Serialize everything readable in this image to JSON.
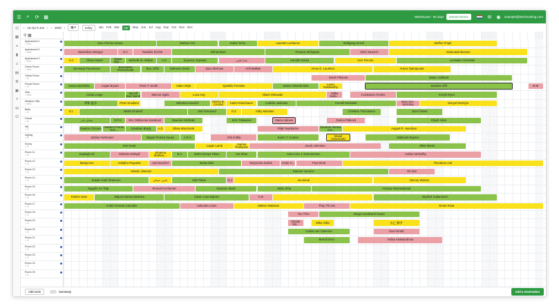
{
  "topbar": {
    "warehouse": "Warehouse : 94 days",
    "renew": "Extend service",
    "email": "example@bed-booking.com"
  },
  "toolbar": {
    "range": "16 Apr 6 Jun",
    "year": "2020",
    "today": "today",
    "months": [
      "Jan",
      "Feb",
      "Mar",
      "Apr",
      "May",
      "Jun",
      "Jul",
      "Aug",
      "Sep",
      "Oct",
      "Nov",
      "Dec"
    ],
    "active_month": "Apr"
  },
  "rooms": [
    {
      "name": "Apartament 1",
      "meta": "♂ 4+1"
    },
    {
      "name": "Apartament 2",
      "meta": "♂ 4+1"
    },
    {
      "name": "Apartament 3",
      "meta": "♂ 4+1"
    },
    {
      "name": "Green Room",
      "meta": "♂ 4+1"
    },
    {
      "name": "Yellow Room",
      "meta": "♂ 2"
    },
    {
      "name": "Purple Room",
      "meta": "♂ 2"
    },
    {
      "name": "Villa",
      "meta": "♂ 6+1"
    },
    {
      "name": "Madison Villa",
      "meta": "♂ 6+1"
    },
    {
      "name": "Bella",
      "meta": "♂ 4"
    },
    {
      "name": "Forest",
      "meta": "♂ 4"
    },
    {
      "name": "Hill",
      "meta": "♂ 2"
    },
    {
      "name": "ZigZag",
      "meta": "♂ 2"
    },
    {
      "name": "Sunny",
      "meta": "♂ 2"
    },
    {
      "name": "Room 11",
      "meta": "♂ 2"
    },
    {
      "name": "Room 12",
      "meta": "♂ 2"
    },
    {
      "name": "Room 13",
      "meta": "♂ 2"
    },
    {
      "name": "Room 14",
      "meta": "♂ 2"
    },
    {
      "name": "Room 15",
      "meta": "♂ 2"
    },
    {
      "name": "Room 16",
      "meta": "♂ 2"
    },
    {
      "name": "Room 17",
      "meta": "♂ 2"
    },
    {
      "name": "Room 18",
      "meta": "♂ 2"
    },
    {
      "name": "Room 19",
      "meta": "♂ 2"
    },
    {
      "name": "Room 20",
      "meta": "♂ 2"
    },
    {
      "name": "Room 21",
      "meta": "♂ 2"
    },
    {
      "name": "Room 22",
      "meta": "♂ 2"
    },
    {
      "name": "Room 23",
      "meta": "♂ 2"
    },
    {
      "name": "Room 24",
      "meta": "♂ 2"
    },
    {
      "name": "Room 25",
      "meta": "♂ 2"
    }
  ],
  "bookings": [
    {
      "r": 0,
      "s": 0,
      "e": 12,
      "t": "Alice Pereira Sousa",
      "c": "g"
    },
    {
      "r": 0,
      "s": 12,
      "e": 20,
      "t": "Stefano Oro",
      "c": "g"
    },
    {
      "r": 0,
      "s": 20,
      "e": 25,
      "t": "Kalevi Tervo",
      "c": "g"
    },
    {
      "r": 0,
      "s": 25,
      "e": 33,
      "t": "Laurette Lachance",
      "c": "y"
    },
    {
      "r": 0,
      "s": 33,
      "e": 42,
      "t": "Wolfgang Kirsch",
      "c": "g"
    },
    {
      "r": 0,
      "s": 42,
      "e": 56,
      "t": "Steffen Projet",
      "c": "y"
    },
    {
      "r": 1,
      "s": 0,
      "e": 7,
      "t": "Maximilian Metzger",
      "c": "p"
    },
    {
      "r": 1,
      "s": 7,
      "e": 9,
      "t": "D.A",
      "c": "p"
    },
    {
      "r": 1,
      "s": 9,
      "e": 14,
      "t": "Radmila Švrček",
      "c": "p"
    },
    {
      "r": 1,
      "s": 14,
      "e": 26,
      "t": "Bill McKlain",
      "c": "g"
    },
    {
      "r": 1,
      "s": 26,
      "e": 37,
      "t": "Полина Лебедева",
      "c": "g"
    },
    {
      "r": 1,
      "s": 37,
      "e": 42,
      "t": "Ulrich Muench",
      "c": "p"
    },
    {
      "r": 1,
      "s": 42,
      "e": 60,
      "t": "Selamawit Bezane",
      "c": "y"
    },
    {
      "r": 2,
      "s": 0,
      "e": 2,
      "t": "X.C",
      "c": "y"
    },
    {
      "r": 2,
      "s": 2,
      "e": 6,
      "t": "Chow Hsueh",
      "c": "g"
    },
    {
      "r": 2,
      "s": 6,
      "e": 8,
      "t": "Vogue Mija...",
      "c": "g"
    },
    {
      "r": 2,
      "s": 8,
      "e": 12,
      "t": "Michelle M. Wilson",
      "c": "g"
    },
    {
      "r": 2,
      "s": 12,
      "e": 14,
      "t": "A.H",
      "c": "g"
    },
    {
      "r": 2,
      "s": 14,
      "e": 20,
      "t": "ζηνωνας σάρακας",
      "c": "g"
    },
    {
      "r": 2,
      "s": 20,
      "e": 26,
      "t": "سارا همی",
      "c": "p"
    },
    {
      "r": 2,
      "s": 26,
      "e": 35,
      "t": "Horváth Dorka",
      "c": "g"
    },
    {
      "r": 2,
      "s": 35,
      "e": 43,
      "t": "Cevi Finnzer",
      "c": "y"
    },
    {
      "r": 2,
      "s": 43,
      "e": 60,
      "t": "Leokadia Ciemiński",
      "c": "g"
    },
    {
      "r": 3,
      "s": 0,
      "e": 6,
      "t": "Gennady Ponomarev",
      "c": "g"
    },
    {
      "r": 3,
      "s": 6,
      "e": 10,
      "t": "Benedykta Pietruszczak",
      "c": "g"
    },
    {
      "r": 3,
      "s": 10,
      "e": 13,
      "t": "Tara Vržlić",
      "c": "g"
    },
    {
      "r": 3,
      "s": 13,
      "e": 17,
      "t": "Dalmace Denis",
      "c": "g"
    },
    {
      "r": 3,
      "s": 17,
      "e": 22,
      "t": "Zara Shishani",
      "c": "p"
    },
    {
      "r": 3,
      "s": 22,
      "e": 27,
      "t": "Anil Walkari",
      "c": "p"
    },
    {
      "r": 3,
      "s": 27,
      "e": 40,
      "t": "Amos O. Laurtsen",
      "c": "y"
    },
    {
      "r": 3,
      "s": 40,
      "e": 50,
      "t": "Анеса Григорьева",
      "c": "y"
    },
    {
      "r": 4,
      "s": 32,
      "e": 39,
      "t": "Sarah Pikmara",
      "c": "p"
    },
    {
      "r": 4,
      "s": 39,
      "e": 58,
      "t": "Mateo Vaillaroli",
      "c": "g"
    },
    {
      "r": 5,
      "s": 0,
      "e": 4,
      "t": "Kasia Kamińska",
      "c": "g"
    },
    {
      "r": 5,
      "s": 4,
      "e": 8,
      "t": "Logan Bryant",
      "c": "p"
    },
    {
      "r": 5,
      "s": 8,
      "e": 14,
      "t": "Rose T. Smith",
      "c": "p"
    },
    {
      "r": 5,
      "s": 14,
      "e": 17,
      "t": "Adam Wryk",
      "c": "y"
    },
    {
      "r": 5,
      "s": 17,
      "e": 27,
      "t": "Quintilia Trevisan",
      "c": "y"
    },
    {
      "r": 5,
      "s": 27,
      "e": 33,
      "t": "Sulian Almeida Dias",
      "c": "g"
    },
    {
      "r": 5,
      "s": 33,
      "e": 36,
      "t": "Laura Goldworthy",
      "c": "y"
    },
    {
      "r": 5,
      "s": 39,
      "e": 58,
      "t": "Jaroslav Kříž",
      "c": "g",
      "o": true
    },
    {
      "r": 5,
      "s": 60,
      "e": 62,
      "t": "M.M",
      "c": "p"
    },
    {
      "r": 6,
      "s": 0,
      "e": 8,
      "t": "Cinda Longe",
      "c": "g"
    },
    {
      "r": 6,
      "s": 8,
      "e": 10,
      "t": "Munolf Said Sarraf",
      "c": "g"
    },
    {
      "r": 6,
      "s": 10,
      "e": 15,
      "t": "Marcus Ingila",
      "c": "p"
    },
    {
      "r": 6,
      "s": 15,
      "e": 20,
      "t": "Luca Hay",
      "c": "y"
    },
    {
      "r": 6,
      "s": 20,
      "e": 34,
      "t": "Olasri Shinwabi",
      "c": "y"
    },
    {
      "r": 6,
      "s": 34,
      "e": 36,
      "t": "Halka Kalm...",
      "c": "p"
    },
    {
      "r": 6,
      "s": 37,
      "e": 43,
      "t": "Constanza Trentini",
      "c": "p"
    },
    {
      "r": 6,
      "s": 43,
      "e": 56,
      "t": "Krzyšt Ryed",
      "c": "g"
    },
    {
      "r": 7,
      "s": 0,
      "e": 7,
      "t": "乔和 盈子",
      "c": "g"
    },
    {
      "r": 7,
      "s": 7,
      "e": 10,
      "t": "Peter Knudsen",
      "c": "y"
    },
    {
      "r": 7,
      "s": 13,
      "e": 19,
      "t": "Valentina Kovačić",
      "c": "g"
    },
    {
      "r": 7,
      "s": 19,
      "e": 21,
      "t": "Shirley B. Conrad",
      "c": "y"
    },
    {
      "r": 7,
      "s": 21,
      "e": 25,
      "t": "Katrin Eisenhauer",
      "c": "y"
    },
    {
      "r": 7,
      "s": 25,
      "e": 30,
      "t": "Ludmila Jasinska",
      "c": "g"
    },
    {
      "r": 7,
      "s": 30,
      "e": 43,
      "t": "Kornell Michalski",
      "c": "g"
    },
    {
      "r": 7,
      "s": 43,
      "e": 46,
      "t": "Mary Dec. Sirochsa",
      "c": "p"
    },
    {
      "r": 7,
      "s": 46,
      "e": 56,
      "t": "Danyel McIntyre",
      "c": "y"
    },
    {
      "r": 8,
      "s": 0,
      "e": 2,
      "t": "E.L",
      "c": "y"
    },
    {
      "r": 8,
      "s": 2,
      "e": 16,
      "t": "Maksi Drobetić",
      "c": "g"
    },
    {
      "r": 8,
      "s": 16,
      "e": 21,
      "t": "Joel Horvaoud",
      "c": "g"
    },
    {
      "r": 8,
      "s": 21,
      "e": 23,
      "t": "O.Z",
      "c": "y"
    },
    {
      "r": 8,
      "s": 23,
      "e": 29,
      "t": "Abby Minahan",
      "c": "y"
    },
    {
      "r": 8,
      "s": 36,
      "e": 41,
      "t": "Christian Thomassen",
      "c": "g"
    },
    {
      "r": 8,
      "s": 43,
      "e": 49,
      "t": "Józef Šimek",
      "c": "g"
    },
    {
      "r": 9,
      "s": 0,
      "e": 6,
      "t": "عثمان نادر",
      "c": "g"
    },
    {
      "r": 9,
      "s": 6,
      "e": 8,
      "t": "D.P.H",
      "c": "g"
    },
    {
      "r": 9,
      "s": 8,
      "e": 13,
      "t": "Eric Ostlivensa Sandoval",
      "c": "p"
    },
    {
      "r": 9,
      "s": 13,
      "e": 18,
      "t": "Maureen Moltvike",
      "c": "g"
    },
    {
      "r": 9,
      "s": 21,
      "e": 25,
      "t": "John Tobiassen",
      "c": "g"
    },
    {
      "r": 9,
      "s": 27,
      "e": 30,
      "t": "Maria Udinesi",
      "c": "p",
      "o": true
    },
    {
      "r": 9,
      "s": 34,
      "e": 39,
      "t": "Darina Ptáková",
      "c": "p"
    },
    {
      "r": 9,
      "s": 43,
      "e": 54,
      "t": "Eliyah Vann",
      "c": "g"
    },
    {
      "r": 10,
      "s": 2,
      "e": 5,
      "t": "Gawlon Chicane",
      "c": "g"
    },
    {
      "r": 10,
      "s": 5,
      "e": 8,
      "t": "Hakeem Ferrari Nos...",
      "c": "g"
    },
    {
      "r": 10,
      "s": 8,
      "e": 12,
      "t": "Jonathan Brady",
      "c": "g"
    },
    {
      "r": 10,
      "s": 12,
      "e": 13,
      "t": "A.O",
      "c": "y"
    },
    {
      "r": 10,
      "s": 13,
      "e": 18,
      "t": "Olivia Wieczorek",
      "c": "y"
    },
    {
      "r": 10,
      "s": 25,
      "e": 33,
      "t": "Filiph Nordström",
      "c": "p"
    },
    {
      "r": 10,
      "s": 33,
      "e": 36,
      "t": "Eduardo Santos Ara...",
      "c": "g"
    },
    {
      "r": 10,
      "s": 36,
      "e": 52,
      "t": "August R. Hendison",
      "c": "y"
    },
    {
      "r": 11,
      "s": 0,
      "e": 10,
      "t": "Sabine Fuhrmann",
      "c": "p"
    },
    {
      "r": 11,
      "s": 10,
      "e": 15,
      "t": "Miguel Pereira Sousa",
      "c": "g"
    },
    {
      "r": 11,
      "s": 15,
      "e": 17,
      "t": "A.R.H",
      "c": "g"
    },
    {
      "r": 11,
      "s": 19,
      "e": 25,
      "t": "Ahti Anttila",
      "c": "p"
    },
    {
      "r": 11,
      "s": 25,
      "e": 33,
      "t": "Karen T. Cordon",
      "c": "g"
    },
    {
      "r": 11,
      "s": 34,
      "e": 37,
      "t": "Manal Abramowitz",
      "c": "y",
      "o": true
    },
    {
      "r": 11,
      "s": 39,
      "e": 50,
      "t": "Makhardi Ryazev",
      "c": "g"
    },
    {
      "r": 12,
      "s": 0,
      "e": 17,
      "t": "Eve Hurst",
      "c": "g"
    },
    {
      "r": 12,
      "s": 17,
      "e": 22,
      "t": "Logan Lamb",
      "c": "y"
    },
    {
      "r": 12,
      "s": 22,
      "e": 24,
      "t": "Sophia Thompson",
      "c": "y"
    },
    {
      "r": 12,
      "s": 24,
      "e": 41,
      "t": "Jacob Johnston",
      "c": "p"
    },
    {
      "r": 12,
      "s": 42,
      "e": 52,
      "t": "Elliot Morris",
      "c": "g"
    },
    {
      "r": 13,
      "s": 0,
      "e": 6,
      "t": "Kayleigh Ali",
      "c": "g"
    },
    {
      "r": 13,
      "s": 6,
      "e": 11,
      "t": "Stoberia Delegili",
      "c": "p"
    },
    {
      "r": 13,
      "s": 11,
      "e": 14,
      "t": "Johanna Mathias...",
      "c": "y"
    },
    {
      "r": 13,
      "s": 14,
      "e": 16,
      "t": "B.A",
      "c": "g"
    },
    {
      "r": 13,
      "s": 16,
      "e": 21,
      "t": "Sarira Dunya Tahan",
      "c": "g"
    },
    {
      "r": 13,
      "s": 21,
      "e": 25,
      "t": "Hui Shao",
      "c": "g"
    },
    {
      "r": 13,
      "s": 25,
      "e": 37,
      "t": "Anne-Lise J. Normannsen",
      "c": "g"
    },
    {
      "r": 13,
      "s": 37,
      "e": 54,
      "t": "Caitlyn Mehaffey",
      "c": "p"
    },
    {
      "r": 14,
      "s": 0,
      "e": 6,
      "t": "Marija Kos",
      "c": "y"
    },
    {
      "r": 14,
      "s": 6,
      "e": 11,
      "t": "Adolpho Pequette",
      "c": "y"
    },
    {
      "r": 14,
      "s": 11,
      "e": 14,
      "t": "Jan Daechel",
      "c": "p"
    },
    {
      "r": 14,
      "s": 14,
      "e": 23,
      "t": "Beda Glita",
      "c": "g"
    },
    {
      "r": 14,
      "s": 23,
      "e": 28,
      "t": "Wojciecha Dudek",
      "c": "p"
    },
    {
      "r": 14,
      "s": 28,
      "e": 30,
      "t": "Arrale H...",
      "c": "p"
    },
    {
      "r": 14,
      "s": 30,
      "e": 36,
      "t": "Poul Zeeb",
      "c": "p"
    },
    {
      "r": 14,
      "s": 36,
      "e": 62,
      "t": "Theodora Lind",
      "c": "y"
    },
    {
      "r": 15,
      "s": 0,
      "e": 20,
      "t": "Yasmin Jimenez",
      "c": "y"
    },
    {
      "r": 15,
      "s": 20,
      "e": 42,
      "t": "Damian Voronov",
      "c": "g"
    },
    {
      "r": 15,
      "s": 42,
      "e": 48,
      "t": "Gil Jain",
      "c": "p"
    },
    {
      "r": 16,
      "s": 0,
      "e": 11,
      "t": "Kasam Karif Shamoon",
      "c": "g"
    },
    {
      "r": 16,
      "s": 11,
      "e": 14,
      "t": "یامین عثمان",
      "c": "y"
    },
    {
      "r": 16,
      "s": 14,
      "e": 21,
      "t": "Sali Peltan",
      "c": "g"
    },
    {
      "r": 16,
      "s": 21,
      "e": 22,
      "t": "O.J",
      "c": "p"
    },
    {
      "r": 16,
      "s": 22,
      "e": 40,
      "t": "Ав-zeinal",
      "c": "y"
    },
    {
      "r": 16,
      "s": 40,
      "e": 52,
      "t": "Darcey Watson",
      "c": "y"
    },
    {
      "r": 17,
      "s": 0,
      "e": 9,
      "t": "Nguyên An Trâp",
      "c": "g"
    },
    {
      "r": 17,
      "s": 9,
      "e": 17,
      "t": "Renard Kochanski",
      "c": "p"
    },
    {
      "r": 17,
      "s": 17,
      "e": 25,
      "t": "Susanne Maier",
      "c": "g"
    },
    {
      "r": 17,
      "s": 25,
      "e": 32,
      "t": "Milan Srba",
      "c": "g"
    },
    {
      "r": 17,
      "s": 32,
      "e": 54,
      "t": "Ananya Heerawatsaal",
      "c": "g"
    },
    {
      "r": 18,
      "s": 0,
      "e": 4,
      "t": "Fabrice Bois",
      "c": "y"
    },
    {
      "r": 18,
      "s": 4,
      "e": 13,
      "t": "Miguel Santos Barbosa",
      "c": "g"
    },
    {
      "r": 18,
      "s": 13,
      "e": 24,
      "t": "Calvin Cunningham",
      "c": "g"
    },
    {
      "r": 18,
      "s": 24,
      "e": 27,
      "t": "K.B",
      "c": "p"
    },
    {
      "r": 18,
      "s": 27,
      "e": 40,
      "t": "",
      "c": "y"
    },
    {
      "r": 18,
      "s": 40,
      "e": 56,
      "t": "Zsyrbek Sultanovich",
      "c": "g"
    },
    {
      "r": 19,
      "s": 0,
      "e": 15,
      "t": "André Ferreira Carvalho",
      "c": "g"
    },
    {
      "r": 19,
      "s": 15,
      "e": 22,
      "t": "Calendre Azam",
      "c": "p"
    },
    {
      "r": 19,
      "s": 22,
      "e": 31,
      "t": "Märten Mattsson",
      "c": "y"
    },
    {
      "r": 19,
      "s": 31,
      "e": 37,
      "t": "Thùy Thi Hài",
      "c": "p"
    },
    {
      "r": 19,
      "s": 37,
      "e": 62,
      "t": "Emrie Rosa",
      "c": "y"
    },
    {
      "r": 20,
      "s": 29,
      "e": 33,
      "t": "You T'len",
      "c": "p"
    },
    {
      "r": 20,
      "s": 33,
      "e": 46,
      "t": "Diego Cavalcanti Sousa",
      "c": "g"
    },
    {
      "r": 21,
      "s": 29,
      "e": 31,
      "t": "Claude Mo...",
      "c": "p"
    },
    {
      "r": 21,
      "s": 32,
      "e": 35,
      "t": "Mike Gilbz",
      "c": "y"
    },
    {
      "r": 21,
      "s": 40,
      "e": 46,
      "t": "久仁 野子",
      "c": "y"
    },
    {
      "r": 22,
      "s": 29,
      "e": 37,
      "t": "Carlos von Cameron",
      "c": "g"
    },
    {
      "r": 22,
      "s": 40,
      "e": 46,
      "t": "Ása Ferretti",
      "c": "p"
    },
    {
      "r": 23,
      "s": 31,
      "e": 37,
      "t": "Bertolt Erna",
      "c": "g"
    },
    {
      "r": 23,
      "s": 38,
      "e": 49,
      "t": "Anfisa Aleksandrova",
      "c": "p"
    }
  ],
  "bottom": {
    "add_room": "Add room",
    "summary": "Summary",
    "add_reservation": "Add a reservation"
  }
}
